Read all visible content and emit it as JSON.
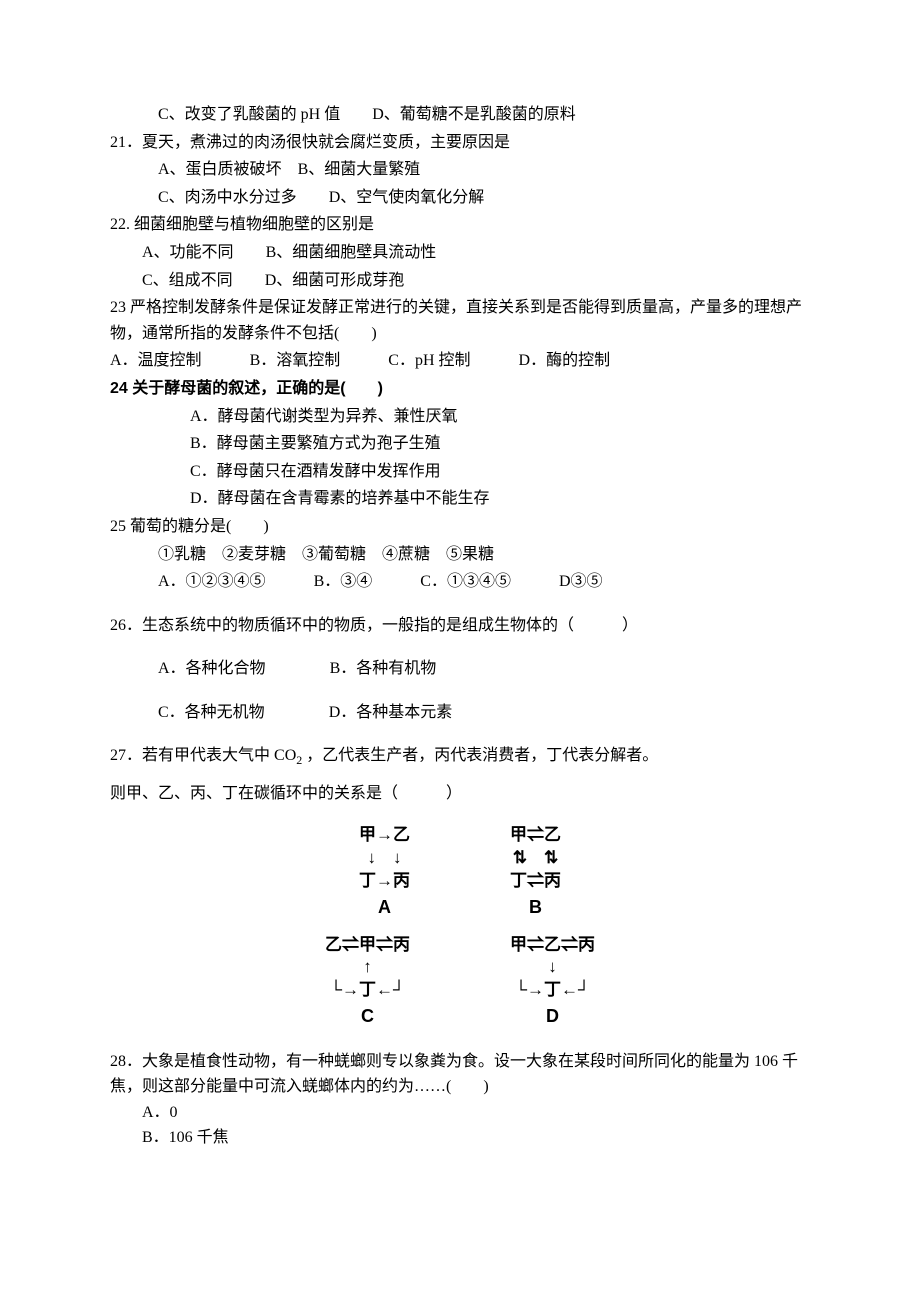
{
  "q20c": "C、改变了乳酸菌的 pH 值",
  "q20d": "D、葡萄糖不是乳酸菌的原料",
  "q21": "21．夏天，煮沸过的肉汤很快就会腐烂变质，主要原因是",
  "q21a": "A、蛋白质被破坏",
  "q21b": "B、细菌大量繁殖",
  "q21c": "C、肉汤中水分过多",
  "q21d": "D、空气使肉氧化分解",
  "q22": "22. 细菌细胞壁与植物细胞壁的区别是",
  "q22a": "A、功能不同",
  "q22b": "B、细菌细胞壁具流动性",
  "q22c": "C、组成不同",
  "q22d": "D、细菌可形成芽孢",
  "q23": "23 严格控制发酵条件是保证发酵正常进行的关键，直接关系到是否能得到质量高，产量多的理想产物，通常所指的发酵条件不包括(　　)",
  "q23a": "A．温度控制",
  "q23b": "B．溶氧控制",
  "q23c": "C．pH 控制",
  "q23d": "D．酶的控制",
  "q24": "24 关于酵母菌的叙述，正确的是(　　)",
  "q24a": "A．酵母菌代谢类型为异养、兼性厌氧",
  "q24b": "B．酵母菌主要繁殖方式为孢子生殖",
  "q24c": "C．酵母菌只在酒精发酵中发挥作用",
  "q24d": "D．酵母菌在含青霉素的培养基中不能生存",
  "q25": "25 葡萄的糖分是(　　)",
  "q25line": "①乳糖　②麦芽糖　③葡萄糖　④蔗糖　⑤果糖",
  "q25a": "A．①②③④⑤",
  "q25b": "B．③④",
  "q25c": "C．①③④⑤",
  "q25d": "D③⑤",
  "q26": "26．生态系统中的物质循环中的物质，一般指的是组成生物体的（　　　）",
  "q26a": "A．各种化合物",
  "q26b": "B．各种有机物",
  "q26c": "C．各种无机物",
  "q26d": "D．各种基本元素",
  "q27_1": "27．若有甲代表大气中 ",
  "q27_co2": "CO",
  "q27_2": " ，乙代表生产者，丙代表消费者，丁代表分解者。",
  "q27_line2": "则甲、乙、丙、丁在碳循环中的关系是（　　　）",
  "diag": {
    "A": {
      "l1": "甲→乙",
      "l2": "↓　↓",
      "l3": "丁→丙",
      "lbl": "A"
    },
    "B": {
      "l1": "甲⇌乙",
      "l2": "⇅　⇅",
      "l3": "丁⇌丙",
      "lbl": "B"
    },
    "C": {
      "l1": "乙⇌甲⇌丙",
      "l2": "↑",
      "l3": "丁",
      "lbl": "C",
      "leftHook": "└",
      "rightHook": "┘",
      "arrowR": "→",
      "arrowL": "←"
    },
    "D": {
      "l1": "甲⇌乙⇌丙",
      "l2": "↓",
      "l3": "丁",
      "lbl": "D",
      "leftHook": "└",
      "rightHook": "┘",
      "arrowR": "→",
      "arrowL": "←"
    }
  },
  "q28": "28．大象是植食性动物，有一种蜣螂则专以象粪为食。设一大象在某段时间所同化的能量为 106 千焦，则这部分能量中可流入蜣螂体内的约为……(　　)",
  "q28a": "A．0",
  "q28b": "B．106 千焦"
}
